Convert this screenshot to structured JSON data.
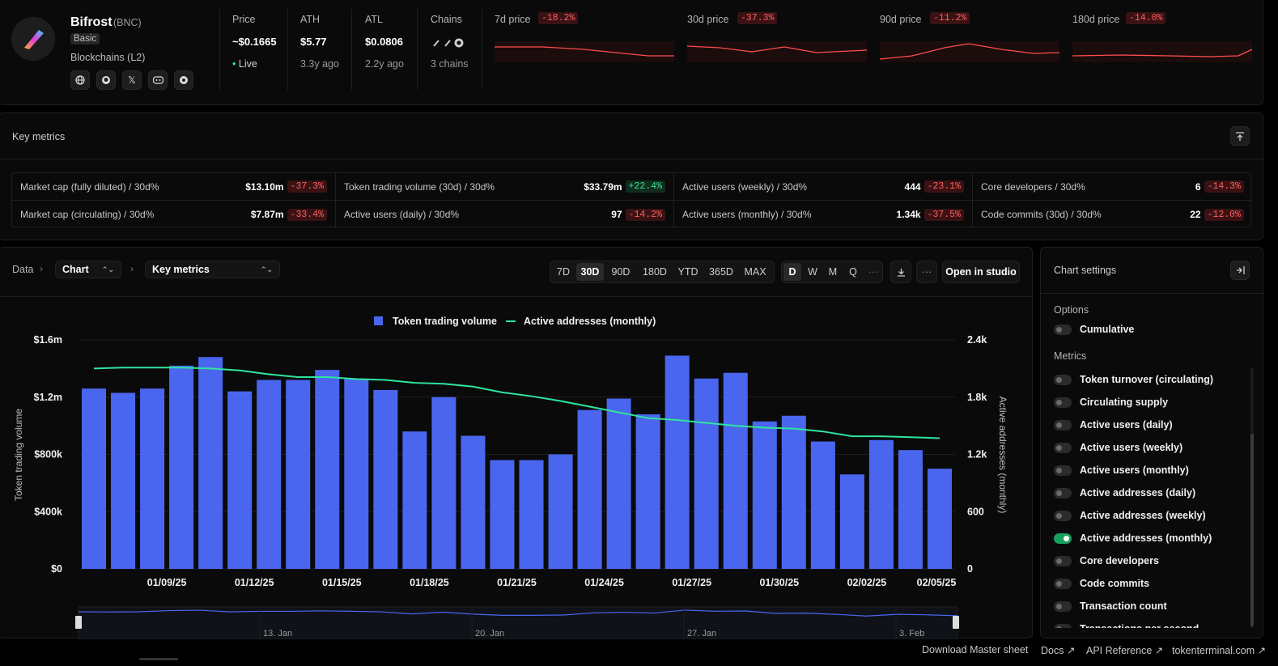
{
  "project": {
    "name": "Bifrost",
    "ticker": "(BNC)",
    "tier": "Basic",
    "category": "Blockchains (L2)",
    "socials": [
      "globe-icon",
      "github-icon",
      "x-icon",
      "discord-icon",
      "forum-icon"
    ]
  },
  "stats": {
    "price": {
      "label": "Price",
      "value": "~$0.1665",
      "sub": "• Live"
    },
    "ath": {
      "label": "ATH",
      "value": "$5.77",
      "sub": "3.3y ago"
    },
    "atl": {
      "label": "ATL",
      "value": "$0.0806",
      "sub": "2.2y ago"
    },
    "chains": {
      "label": "Chains",
      "sub": "3 chains"
    }
  },
  "sparks": [
    {
      "label": "7d price",
      "change": "-18.2%"
    },
    {
      "label": "30d price",
      "change": "-37.3%"
    },
    {
      "label": "90d price",
      "change": "-11.2%"
    },
    {
      "label": "180d price",
      "change": "-14.0%"
    }
  ],
  "key_metrics": {
    "title": "Key metrics",
    "rows": [
      [
        {
          "label": "Market cap (fully diluted) / 30d%",
          "value": "$13.10m",
          "change": "-37.3%",
          "dir": "neg"
        },
        {
          "label": "Token trading volume (30d) / 30d%",
          "value": "$33.79m",
          "change": "+22.4%",
          "dir": "pos"
        },
        {
          "label": "Active users (weekly) / 30d%",
          "value": "444",
          "change": "-23.1%",
          "dir": "neg"
        },
        {
          "label": "Core developers / 30d%",
          "value": "6",
          "change": "-14.3%",
          "dir": "neg"
        }
      ],
      [
        {
          "label": "Market cap (circulating) / 30d%",
          "value": "$7.87m",
          "change": "-33.4%",
          "dir": "neg"
        },
        {
          "label": "Active users (daily) / 30d%",
          "value": "97",
          "change": "-14.2%",
          "dir": "neg"
        },
        {
          "label": "Active users (monthly) / 30d%",
          "value": "1.34k",
          "change": "-37.5%",
          "dir": "neg"
        },
        {
          "label": "Code commits (30d) / 30d%",
          "value": "22",
          "change": "-12.0%",
          "dir": "neg"
        }
      ]
    ]
  },
  "toolbar": {
    "crumb_data": "Data",
    "crumb_chart": "Chart",
    "crumb_metrics": "Key metrics",
    "ranges": [
      "7D",
      "30D",
      "90D",
      "180D",
      "YTD",
      "365D",
      "MAX"
    ],
    "active_range": "30D",
    "granularity": [
      "D",
      "W",
      "M",
      "Q"
    ],
    "active_gran": "D",
    "more": "···",
    "open_studio": "Open in studio"
  },
  "chart_data": {
    "type": "bar",
    "legend": [
      "Token trading volume",
      "Active addresses (monthly)"
    ],
    "ylabel": "Token trading volume",
    "y2label": "Active addresses (monthly)",
    "y_ticks": [
      "$1.6m",
      "$1.2m",
      "$800k",
      "$400k",
      "$0"
    ],
    "y2_ticks": [
      "2.4k",
      "1.8k",
      "1.2k",
      "600",
      "0"
    ],
    "x_ticks": [
      "01/09/25",
      "01/12/25",
      "01/15/25",
      "01/18/25",
      "01/21/25",
      "01/24/25",
      "01/27/25",
      "01/30/25",
      "02/02/25",
      "02/05/25"
    ],
    "ylim": [
      0,
      1600000
    ],
    "y2lim": [
      0,
      2400
    ],
    "series": [
      {
        "name": "Token trading volume",
        "color": "#4a66ee",
        "values": [
          1260000,
          1230000,
          1260000,
          1420000,
          1480000,
          1240000,
          1320000,
          1320000,
          1390000,
          1330000,
          1250000,
          960000,
          1200000,
          930000,
          760000,
          760000,
          800000,
          1110000,
          1190000,
          1080000,
          1490000,
          1330000,
          1370000,
          1030000,
          1070000,
          890000,
          660000,
          900000,
          830000,
          700000
        ]
      },
      {
        "name": "Active addresses (monthly)",
        "color": "#2ee59d",
        "values": [
          2100,
          2110,
          2110,
          2110,
          2100,
          2080,
          2040,
          2010,
          2010,
          1990,
          1980,
          1950,
          1940,
          1910,
          1850,
          1810,
          1760,
          1700,
          1640,
          1580,
          1560,
          1530,
          1500,
          1480,
          1470,
          1440,
          1390,
          1390,
          1380,
          1370
        ]
      }
    ]
  },
  "navigator": {
    "labels": [
      "13. Jan",
      "20. Jan",
      "27. Jan",
      "3. Feb"
    ]
  },
  "settings": {
    "title": "Chart settings",
    "options_title": "Options",
    "options": [
      {
        "label": "Cumulative",
        "on": false
      }
    ],
    "metrics_title": "Metrics",
    "metrics": [
      {
        "label": "Token turnover (circulating)",
        "on": false
      },
      {
        "label": "Circulating supply",
        "on": false
      },
      {
        "label": "Active users (daily)",
        "on": false
      },
      {
        "label": "Active users (weekly)",
        "on": false
      },
      {
        "label": "Active users (monthly)",
        "on": false
      },
      {
        "label": "Active addresses (daily)",
        "on": false
      },
      {
        "label": "Active addresses (weekly)",
        "on": false
      },
      {
        "label": "Active addresses (monthly)",
        "on": true
      },
      {
        "label": "Core developers",
        "on": false
      },
      {
        "label": "Code commits",
        "on": false
      },
      {
        "label": "Transaction count",
        "on": false
      },
      {
        "label": "Transactions per second",
        "on": false
      }
    ]
  },
  "footer": {
    "download": "Download Master sheet",
    "docs": "Docs ↗",
    "api": "API Reference ↗",
    "site": "tokenterminal.com ↗"
  },
  "colors": {
    "accent_bar": "#4a66ee",
    "line": "#2ee59d",
    "negative": "#ff5f5f",
    "positive": "#3ee08f"
  }
}
